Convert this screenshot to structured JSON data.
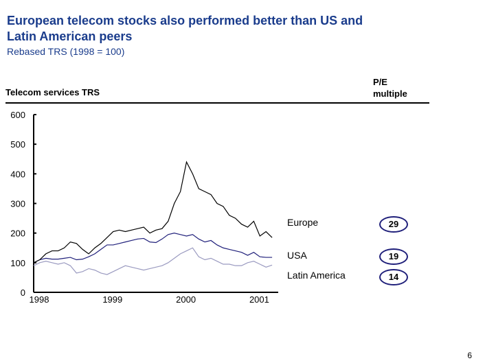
{
  "title": "European telecom stocks also performed better than US and Latin American peers",
  "subtitle": "Rebased TRS (1998 = 100)",
  "left_header": "Telecom services  TRS",
  "right_header": "P/E multiple",
  "page_number": "6",
  "chart_data": {
    "type": "line",
    "ylim": [
      0,
      600
    ],
    "yticks": [
      "0",
      "100",
      "200",
      "300",
      "400",
      "500",
      "600"
    ],
    "xticks": [
      "1998",
      "1999",
      "2000",
      "2001"
    ],
    "xlim": [
      "1998-01",
      "2001-05"
    ],
    "grid": false,
    "x": [
      "1998-01",
      "1998-02",
      "1998-03",
      "1998-04",
      "1998-05",
      "1998-06",
      "1998-07",
      "1998-08",
      "1998-09",
      "1998-10",
      "1998-11",
      "1998-12",
      "1999-01",
      "1999-02",
      "1999-03",
      "1999-04",
      "1999-05",
      "1999-06",
      "1999-07",
      "1999-08",
      "1999-09",
      "1999-10",
      "1999-11",
      "1999-12",
      "2000-01",
      "2000-02",
      "2000-03",
      "2000-04",
      "2000-05",
      "2000-06",
      "2000-07",
      "2000-08",
      "2000-09",
      "2000-10",
      "2000-11",
      "2000-12",
      "2001-01",
      "2001-02",
      "2001-03",
      "2001-04"
    ],
    "series": [
      {
        "name": "Europe",
        "color": "#000000",
        "pe": "29",
        "values": [
          100,
          110,
          130,
          140,
          140,
          150,
          170,
          165,
          145,
          130,
          150,
          165,
          185,
          205,
          210,
          205,
          210,
          215,
          220,
          200,
          210,
          215,
          240,
          300,
          340,
          440,
          400,
          350,
          340,
          330,
          300,
          290,
          260,
          250,
          230,
          220,
          240,
          190,
          205,
          185
        ]
      },
      {
        "name": "USA",
        "color": "#1f1f7a",
        "pe": "19",
        "values": [
          100,
          110,
          115,
          112,
          112,
          115,
          118,
          110,
          112,
          120,
          130,
          145,
          160,
          160,
          165,
          170,
          175,
          180,
          182,
          170,
          168,
          180,
          195,
          200,
          195,
          190,
          195,
          180,
          170,
          175,
          160,
          150,
          145,
          140,
          135,
          125,
          135,
          120,
          118,
          118
        ]
      },
      {
        "name": "Latin America",
        "color": "#9a9ac0",
        "pe": "14",
        "values": [
          90,
          100,
          105,
          100,
          95,
          100,
          90,
          65,
          70,
          80,
          75,
          65,
          60,
          70,
          80,
          90,
          85,
          80,
          75,
          80,
          85,
          90,
          100,
          115,
          130,
          140,
          150,
          120,
          110,
          115,
          105,
          95,
          95,
          90,
          90,
          100,
          105,
          95,
          85,
          92
        ]
      }
    ]
  }
}
